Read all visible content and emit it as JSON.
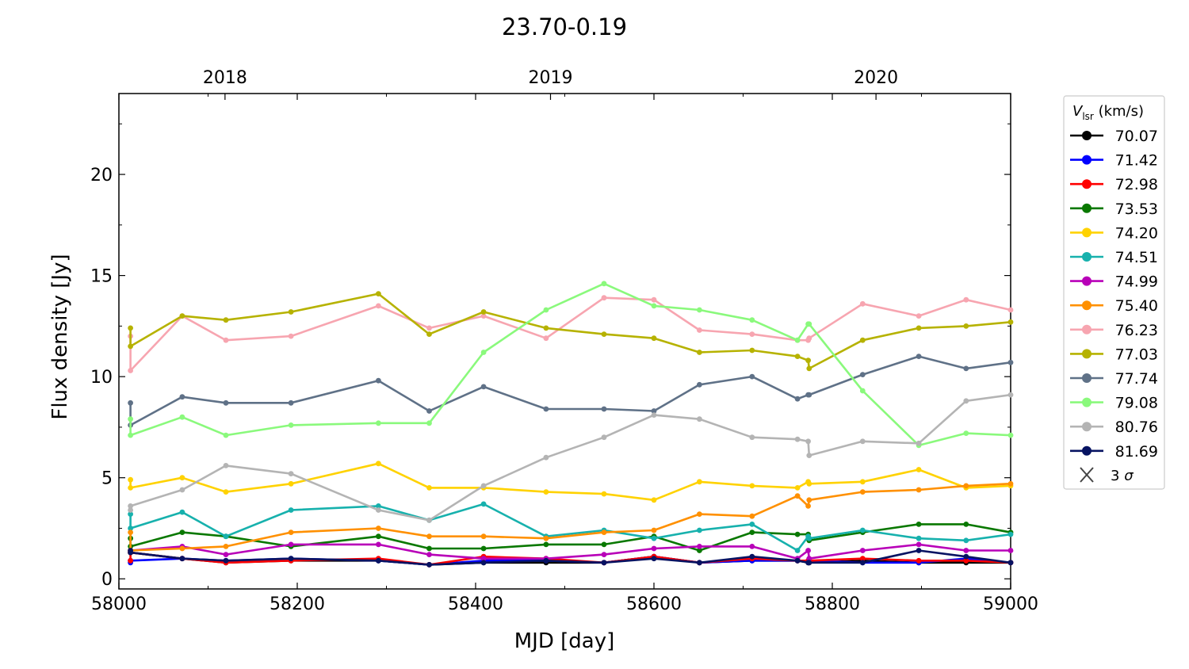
{
  "chart_data": {
    "type": "line",
    "title": "23.70-0.19",
    "xlabel": "MJD [day]",
    "ylabel": "Flux density [Jy]",
    "xlim": [
      58000,
      59000
    ],
    "ylim": [
      -0.5,
      24
    ],
    "x_ticks": [
      "58000",
      "58200",
      "58400",
      "58600",
      "58800",
      "59000"
    ],
    "y_ticks": [
      "0",
      "5",
      "10",
      "15",
      "20"
    ],
    "top_axis": {
      "labels": [
        "2018",
        "2019",
        "2020"
      ],
      "mjd": [
        58119,
        58484,
        58849
      ]
    },
    "legend": {
      "title_italic": "V",
      "title_sub": "lsr",
      "title_rest": " (km/s)",
      "position": "right, outside plot",
      "sigma_label_prefix": "3 ",
      "sigma_symbol": "σ"
    },
    "x": [
      58013,
      58013,
      58071,
      58120,
      58193,
      58291,
      58348,
      58409,
      58479,
      58544,
      58600,
      58651,
      58710,
      58761,
      58773,
      58774,
      58834,
      58897,
      58950,
      59000
    ],
    "series": [
      {
        "name": "70.07",
        "color": "#000000",
        "values": [
          1.4,
          1.3,
          1.0,
          0.8,
          0.9,
          0.9,
          0.7,
          0.8,
          0.8,
          0.8,
          1.1,
          0.8,
          0.9,
          0.9,
          0.8,
          0.8,
          0.9,
          0.8,
          0.8,
          0.8
        ]
      },
      {
        "name": "71.42",
        "color": "#0000ff",
        "values": [
          0.8,
          0.9,
          1.0,
          0.9,
          1.0,
          0.9,
          0.7,
          0.9,
          0.9,
          0.8,
          1.1,
          0.8,
          0.9,
          0.9,
          0.9,
          0.9,
          0.8,
          0.8,
          1.0,
          0.8
        ]
      },
      {
        "name": "72.98",
        "color": "#ff0000",
        "values": [
          0.9,
          1.3,
          1.0,
          0.8,
          0.9,
          1.0,
          0.7,
          1.1,
          1.0,
          0.8,
          1.1,
          0.8,
          1.0,
          0.9,
          0.9,
          0.9,
          1.0,
          0.9,
          0.9,
          0.8
        ]
      },
      {
        "name": "73.53",
        "color": "#097800",
        "values": [
          2.0,
          1.6,
          2.3,
          2.1,
          1.6,
          2.1,
          1.5,
          1.5,
          1.7,
          1.7,
          2.1,
          1.4,
          2.3,
          2.2,
          2.2,
          1.9,
          2.3,
          2.7,
          2.7,
          2.3
        ]
      },
      {
        "name": "74.20",
        "color": "#ffd200",
        "values": [
          4.9,
          4.5,
          5.0,
          4.3,
          4.7,
          5.7,
          4.5,
          4.5,
          4.3,
          4.2,
          3.9,
          4.8,
          4.6,
          4.5,
          4.8,
          4.7,
          4.8,
          5.4,
          4.5,
          4.6
        ]
      },
      {
        "name": "74.51",
        "color": "#17b1ad",
        "values": [
          3.2,
          2.5,
          3.3,
          2.1,
          3.4,
          3.6,
          2.9,
          3.7,
          2.1,
          2.4,
          2.0,
          2.4,
          2.7,
          1.4,
          2.1,
          2.0,
          2.4,
          2.0,
          1.9,
          2.2
        ]
      },
      {
        "name": "74.99",
        "color": "#b800b8",
        "values": [
          1.4,
          1.4,
          1.6,
          1.2,
          1.7,
          1.7,
          1.2,
          1.0,
          1.0,
          1.2,
          1.5,
          1.6,
          1.6,
          1.0,
          1.4,
          1.0,
          1.4,
          1.7,
          1.4,
          1.4
        ]
      },
      {
        "name": "75.40",
        "color": "#ff9000",
        "values": [
          2.3,
          1.4,
          1.5,
          1.6,
          2.3,
          2.5,
          2.1,
          2.1,
          2.0,
          2.3,
          2.4,
          3.2,
          3.1,
          4.1,
          3.6,
          3.9,
          4.3,
          4.4,
          4.6,
          4.7
        ]
      },
      {
        "name": "76.23",
        "color": "#f7a5b0",
        "values": [
          12.0,
          10.3,
          13.0,
          11.8,
          12.0,
          13.5,
          12.4,
          13.0,
          11.9,
          13.9,
          13.8,
          12.3,
          12.1,
          11.8,
          11.8,
          11.9,
          13.6,
          13.0,
          13.8,
          13.3
        ]
      },
      {
        "name": "77.03",
        "color": "#b6b200",
        "values": [
          12.4,
          11.5,
          13.0,
          12.8,
          13.2,
          14.1,
          12.1,
          13.2,
          12.4,
          12.1,
          11.9,
          11.2,
          11.3,
          11.0,
          10.8,
          10.4,
          11.8,
          12.4,
          12.5,
          12.7
        ]
      },
      {
        "name": "77.74",
        "color": "#5f7187",
        "values": [
          8.7,
          7.6,
          9.0,
          8.7,
          8.7,
          9.8,
          8.3,
          9.5,
          8.4,
          8.4,
          8.3,
          9.6,
          10.0,
          8.9,
          9.1,
          9.1,
          10.1,
          11.0,
          10.4,
          10.7
        ]
      },
      {
        "name": "79.08",
        "color": "#8af97c",
        "values": [
          7.9,
          7.1,
          8.0,
          7.1,
          7.6,
          7.7,
          7.7,
          11.2,
          13.3,
          14.6,
          13.5,
          13.3,
          12.8,
          11.8,
          12.6,
          12.6,
          9.3,
          6.6,
          7.2,
          7.1
        ]
      },
      {
        "name": "80.76",
        "color": "#b4b4b4",
        "values": [
          3.4,
          3.6,
          4.4,
          5.6,
          5.2,
          3.4,
          2.9,
          4.6,
          6.0,
          7.0,
          8.1,
          7.9,
          7.0,
          6.9,
          6.8,
          6.1,
          6.8,
          6.7,
          8.8,
          9.1
        ]
      },
      {
        "name": "81.69",
        "color": "#071362",
        "values": [
          1.4,
          1.3,
          1.0,
          0.9,
          1.0,
          0.9,
          0.7,
          0.8,
          0.9,
          0.8,
          1.0,
          0.8,
          1.1,
          0.9,
          0.8,
          0.8,
          0.8,
          1.4,
          1.1,
          0.8
        ]
      }
    ]
  }
}
